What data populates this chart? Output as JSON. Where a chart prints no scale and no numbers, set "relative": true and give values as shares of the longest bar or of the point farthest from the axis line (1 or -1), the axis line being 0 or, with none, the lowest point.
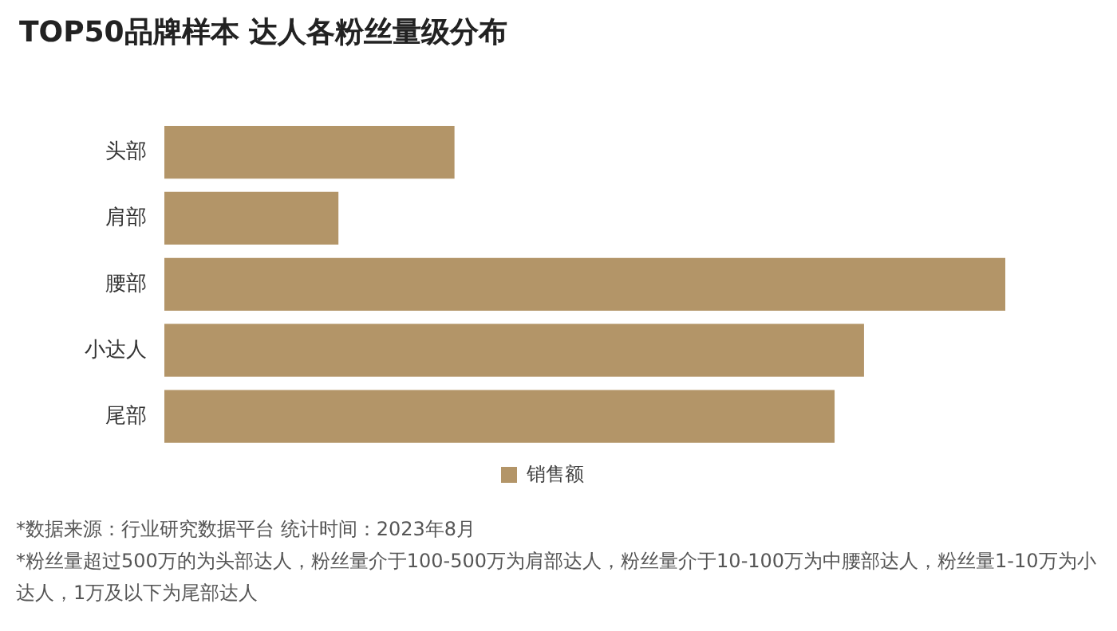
{
  "chart_data": {
    "type": "bar",
    "orientation": "horizontal",
    "relative": true,
    "title": "TOP50品牌样本 达人各粉丝量级分布",
    "categories": [
      "头部",
      "肩部",
      "腰部",
      "小达人",
      "尾部"
    ],
    "series": [
      {
        "name": "销售额",
        "color": "#b39568",
        "values": [
          0.345,
          0.207,
          1,
          0.832,
          0.797
        ]
      }
    ],
    "legend": "bottom",
    "annotations": [
      "*数据来源：行业研究数据平台 统计时间：2023年8月",
      "*粉丝量超过500万的为头部达人，粉丝量介于100-500万为肩部达人，粉丝量介于10-100万为中腰部达人，粉丝量1-10万为小达人，1万及以下为尾部达人"
    ]
  }
}
